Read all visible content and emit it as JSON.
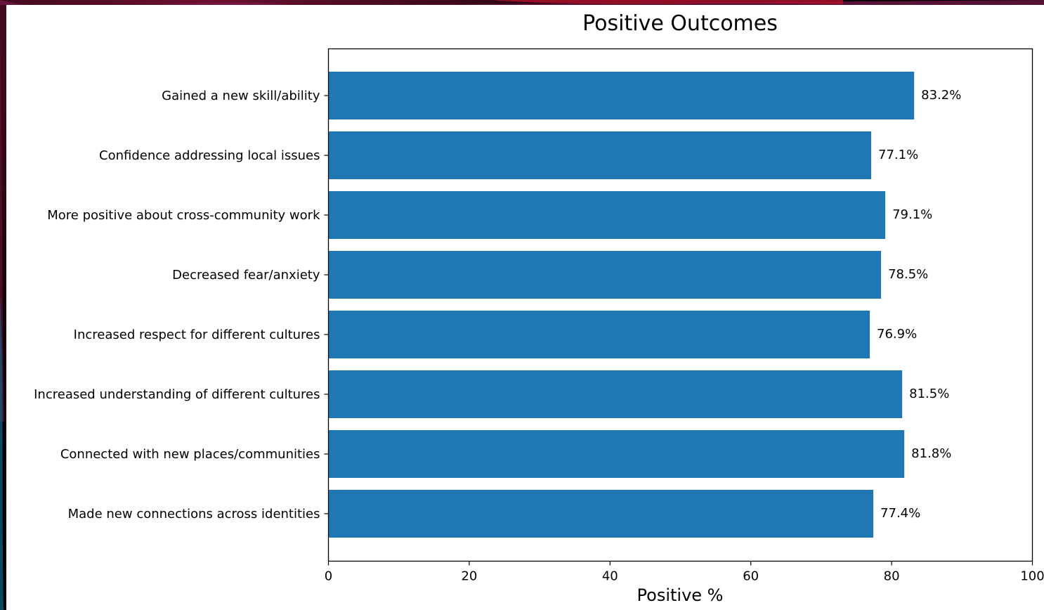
{
  "chart_data": {
    "type": "bar",
    "orientation": "horizontal",
    "title": "Positive Outcomes",
    "xlabel": "Positive %",
    "ylabel": "",
    "xlim": [
      0,
      100
    ],
    "xticks": [
      0,
      20,
      40,
      60,
      80,
      100
    ],
    "grid": false,
    "bar_color": "#1f77b4",
    "categories": [
      "Gained a new skill/ability",
      "Confidence addressing local issues",
      "More positive about cross-community work",
      "Decreased fear/anxiety",
      "Increased respect for different cultures",
      "Increased understanding of different cultures",
      "Connected with new places/communities",
      "Made new connections across identities"
    ],
    "values": [
      83.2,
      77.1,
      79.1,
      78.5,
      76.9,
      81.5,
      81.8,
      77.4
    ],
    "value_labels": [
      "83.2%",
      "77.1%",
      "79.1%",
      "78.5%",
      "76.9%",
      "81.5%",
      "81.8%",
      "77.4%"
    ]
  }
}
